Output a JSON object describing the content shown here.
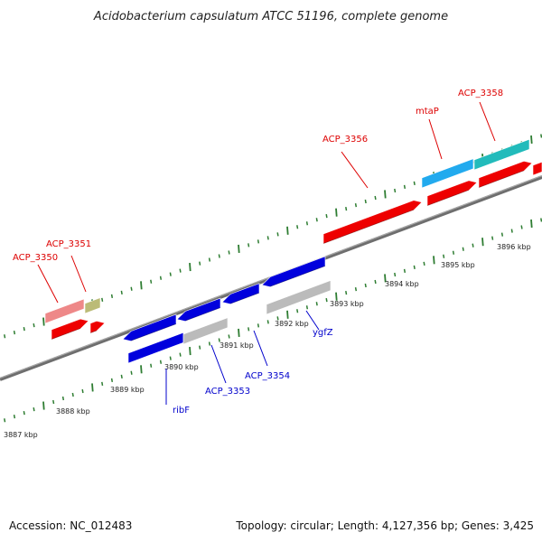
{
  "title": "Acidobacterium capsulatum ATCC 51196, complete genome",
  "footer": {
    "accession": "Accession: NC_012483",
    "summary": "Topology: circular; Length: 4,127,356 bp; Genes: 3,425"
  },
  "colors": {
    "backbone": "#8c8c8c",
    "tick": "#2e7d32",
    "forward_label": "#dd0000",
    "reverse_label": "#0000cc"
  },
  "scale_ticks": [
    {
      "label": "3887 kbp"
    },
    {
      "label": "3888 kbp"
    },
    {
      "label": "3889 kbp"
    },
    {
      "label": "3890 kbp"
    },
    {
      "label": "3891 kbp"
    },
    {
      "label": "3892 kbp"
    },
    {
      "label": "3893 kbp"
    },
    {
      "label": "3894 kbp"
    },
    {
      "label": "3895 kbp"
    },
    {
      "label": "3896 kbp"
    }
  ],
  "gene_labels": [
    {
      "text": "ACP_3350",
      "strand": "forward"
    },
    {
      "text": "ACP_3351",
      "strand": "forward"
    },
    {
      "text": "ACP_3356",
      "strand": "forward"
    },
    {
      "text": "mtaP",
      "strand": "forward"
    },
    {
      "text": "ACP_3358",
      "strand": "forward"
    },
    {
      "text": "ribF",
      "strand": "reverse"
    },
    {
      "text": "ACP_3353",
      "strand": "reverse"
    },
    {
      "text": "ACP_3354",
      "strand": "reverse"
    },
    {
      "text": "ygfZ",
      "strand": "reverse"
    }
  ],
  "features": [
    {
      "name": "ACP_3350-product",
      "color": "#ee8888"
    },
    {
      "name": "ACP_3351-product",
      "color": "#bbbb77"
    },
    {
      "name": "ACP_3350-cds",
      "color": "#ee0000"
    },
    {
      "name": "ACP_3351-cds",
      "color": "#ee0000"
    },
    {
      "name": "ribF-product",
      "color": "#0000dd"
    },
    {
      "name": "ACP_3353-product",
      "color": "#0000dd"
    },
    {
      "name": "ACP_3354-product",
      "color": "#0000dd"
    },
    {
      "name": "ygfZ-product",
      "color": "#0000dd"
    },
    {
      "name": "ribF-cds",
      "color": "#0000dd"
    },
    {
      "name": "ACP_3353-cds",
      "color": "#bbbbbb"
    },
    {
      "name": "ygfZ-cds",
      "color": "#bbbbbb"
    },
    {
      "name": "ACP_3356-cds",
      "color": "#ee0000"
    },
    {
      "name": "mtaP-product",
      "color": "#22aaee"
    },
    {
      "name": "ACP_3358-product",
      "color": "#22bbbb"
    },
    {
      "name": "mtaP-cds",
      "color": "#ee0000"
    },
    {
      "name": "ACP_3358-cds",
      "color": "#ee0000"
    },
    {
      "name": "next-cds",
      "color": "#ee0000"
    }
  ]
}
